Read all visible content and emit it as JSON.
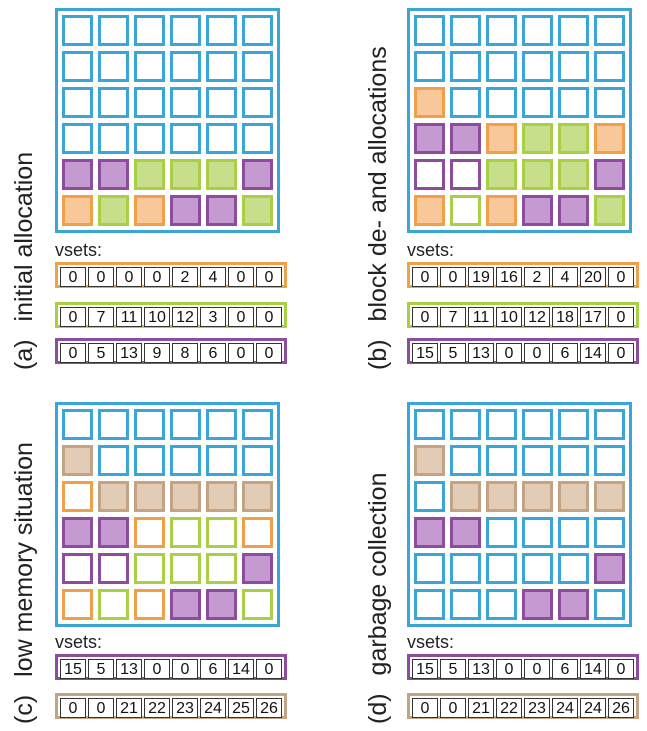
{
  "colors": {
    "free": "#3aa5d6",
    "orange": "#f0a04b",
    "green": "#a8cf45",
    "purple": "#8e4c9e",
    "tan": "#c2a386",
    "green_fill": "#c7df8a",
    "purple_fill": "#c49ad0",
    "orange_fill": "#f8c79a",
    "tan_fill": "#e2ccb6"
  },
  "panels": [
    {
      "tag": "(a)",
      "label": "initial allocation",
      "vsets_title": "vsets:",
      "grid": [
        [
          "b",
          "b",
          "b",
          "b",
          "b",
          "b"
        ],
        [
          "b",
          "b",
          "b",
          "b",
          "b",
          "b"
        ],
        [
          "b",
          "b",
          "b",
          "b",
          "b",
          "b"
        ],
        [
          "b",
          "b",
          "b",
          "b",
          "b",
          "b"
        ],
        [
          "P",
          "P",
          "G",
          "G",
          "G",
          "P"
        ],
        [
          "O",
          "G",
          "O",
          "P",
          "P",
          "G"
        ]
      ],
      "rows": [
        {
          "color": "orange",
          "values": [
            "0",
            "0",
            "0",
            "0",
            "2",
            "4",
            "0",
            "0"
          ]
        },
        {
          "color": "green",
          "values": [
            "0",
            "7",
            "11",
            "10",
            "12",
            "3",
            "0",
            "0"
          ]
        },
        {
          "color": "purple",
          "values": [
            "0",
            "5",
            "13",
            "9",
            "8",
            "6",
            "0",
            "0"
          ]
        }
      ]
    },
    {
      "tag": "(b)",
      "label": "block de- and allocations",
      "vsets_title": "vsets:",
      "grid": [
        [
          "b",
          "b",
          "b",
          "b",
          "b",
          "b"
        ],
        [
          "b",
          "b",
          "b",
          "b",
          "b",
          "b"
        ],
        [
          "O",
          "b",
          "b",
          "b",
          "b",
          "b"
        ],
        [
          "P",
          "P",
          "O",
          "G",
          "G",
          "O"
        ],
        [
          "p",
          "p",
          "G",
          "G",
          "G",
          "P"
        ],
        [
          "O",
          "g",
          "O",
          "P",
          "P",
          "G"
        ]
      ],
      "rows": [
        {
          "color": "orange",
          "values": [
            "0",
            "0",
            "19",
            "16",
            "2",
            "4",
            "20",
            "0"
          ]
        },
        {
          "color": "green",
          "values": [
            "0",
            "7",
            "11",
            "10",
            "12",
            "18",
            "17",
            "0"
          ]
        },
        {
          "color": "purple",
          "values": [
            "15",
            "5",
            "13",
            "0",
            "0",
            "6",
            "14",
            "0"
          ]
        }
      ]
    },
    {
      "tag": "(c)",
      "label": "low memory situation",
      "vsets_title": "vsets:",
      "grid": [
        [
          "b",
          "b",
          "b",
          "b",
          "b",
          "b"
        ],
        [
          "T",
          "b",
          "b",
          "b",
          "b",
          "b"
        ],
        [
          "o",
          "T",
          "T",
          "T",
          "T",
          "T"
        ],
        [
          "P",
          "P",
          "o",
          "g",
          "g",
          "o"
        ],
        [
          "p",
          "p",
          "g",
          "g",
          "g",
          "P"
        ],
        [
          "o",
          "g",
          "o",
          "P",
          "P",
          "g"
        ]
      ],
      "rows": [
        {
          "color": "purple",
          "values": [
            "15",
            "5",
            "13",
            "0",
            "0",
            "6",
            "14",
            "0"
          ]
        },
        {
          "color": "tan",
          "values": [
            "0",
            "0",
            "21",
            "22",
            "23",
            "24",
            "25",
            "26"
          ]
        }
      ]
    },
    {
      "tag": "(d)",
      "label": "garbage collection",
      "vsets_title": "vsets:",
      "grid": [
        [
          "b",
          "b",
          "b",
          "b",
          "b",
          "b"
        ],
        [
          "T",
          "b",
          "b",
          "b",
          "b",
          "b"
        ],
        [
          "b",
          "T",
          "T",
          "T",
          "T",
          "T"
        ],
        [
          "P",
          "P",
          "b",
          "b",
          "b",
          "b"
        ],
        [
          "b",
          "b",
          "b",
          "b",
          "b",
          "P"
        ],
        [
          "b",
          "b",
          "b",
          "P",
          "P",
          "b"
        ]
      ],
      "rows": [
        {
          "color": "purple",
          "values": [
            "15",
            "5",
            "13",
            "0",
            "0",
            "6",
            "14",
            "0"
          ]
        },
        {
          "color": "tan",
          "values": [
            "0",
            "0",
            "21",
            "22",
            "23",
            "24",
            "24",
            "26"
          ]
        }
      ]
    }
  ]
}
